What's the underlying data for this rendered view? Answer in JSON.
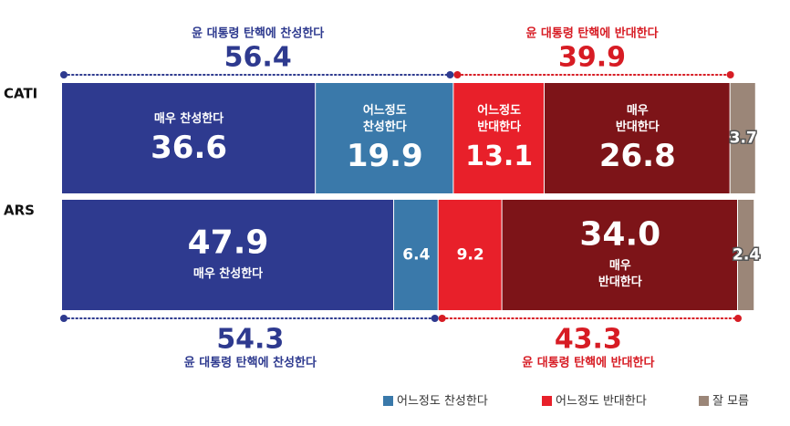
{
  "chart_data": {
    "type": "bar",
    "orientation": "horizontal",
    "stacked": true,
    "xlim": [
      0,
      100
    ],
    "grid": false,
    "legend_position": "bottom-right",
    "categories": [
      "CATI",
      "ARS"
    ],
    "series": [
      {
        "name": "매우 찬성한다",
        "values": [
          36.6,
          47.9
        ],
        "color": "#2e3a8f"
      },
      {
        "name": "어느정도 찬성한다",
        "values": [
          19.9,
          6.4
        ],
        "color": "#3a79aa"
      },
      {
        "name": "어느정도 반대한다",
        "values": [
          13.1,
          9.2
        ],
        "color": "#e8202a"
      },
      {
        "name": "매우 반대한다",
        "values": [
          26.8,
          34.0
        ],
        "color": "#7d1418"
      },
      {
        "name": "잘 모름",
        "values": [
          3.7,
          2.4
        ],
        "color": "#9b8678"
      }
    ],
    "segment_labels": [
      [
        {
          "lines": [
            "매우 찬성한다"
          ],
          "value": "36.6",
          "order": "label-first"
        },
        {
          "lines": [
            "어느정도",
            "찬성한다"
          ],
          "value": "19.9",
          "order": "label-first"
        },
        {
          "lines": [
            "어느정도",
            "반대한다"
          ],
          "value": "13.1",
          "order": "label-first"
        },
        {
          "lines": [
            "매우",
            "반대한다"
          ],
          "value": "26.8",
          "order": "label-first"
        },
        {
          "lines": [],
          "value": "3.7",
          "order": "value-only"
        }
      ],
      [
        {
          "lines": [
            "매우 찬성한다"
          ],
          "value": "47.9",
          "order": "value-first"
        },
        {
          "lines": [],
          "value": "6.4",
          "order": "value-only"
        },
        {
          "lines": [],
          "value": "9.2",
          "order": "value-only"
        },
        {
          "lines": [
            "매우",
            "반대한다"
          ],
          "value": "34.0",
          "order": "value-first"
        },
        {
          "lines": [],
          "value": "2.4",
          "order": "value-only"
        }
      ]
    ],
    "totals": {
      "top": {
        "support": {
          "label": "윤 대통령 탄핵에 찬성한다",
          "value": "56.4"
        },
        "oppose": {
          "label": "윤 대통령 탄핵에 반대한다",
          "value": "39.9"
        }
      },
      "bottom": {
        "support": {
          "label": "윤 대통령 탄핵에 찬성한다",
          "value": "54.3"
        },
        "oppose": {
          "label": "윤 대통령 탄핵에 반대한다",
          "value": "43.3"
        }
      }
    },
    "legend": [
      {
        "label": "어느정도 찬성한다",
        "color": "#3a79aa"
      },
      {
        "label": "어느정도 반대한다",
        "color": "#e8202a"
      },
      {
        "label": "잘 모름",
        "color": "#9b8678"
      }
    ],
    "support_text_color": "#2e3a8f",
    "oppose_text_color": "#d71c24"
  }
}
